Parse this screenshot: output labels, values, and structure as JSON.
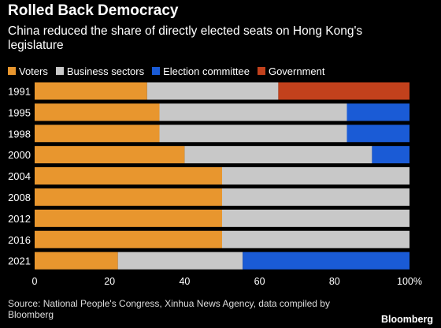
{
  "title": "Rolled Back Democracy",
  "subtitle": "China reduced the share of directly elected seats on Hong Kong's legislature",
  "source": "Source: National People's Congress, Xinhua News Agency, data compiled by Bloomberg",
  "brand": "Bloomberg",
  "chart_data": {
    "type": "bar",
    "orientation": "horizontal",
    "stacked": true,
    "categories": [
      "1991",
      "1995",
      "1998",
      "2000",
      "2004",
      "2008",
      "2012",
      "2016",
      "2021"
    ],
    "series": [
      {
        "name": "Voters",
        "color": "#e8962e",
        "values": [
          30,
          33.3,
          33.3,
          40,
          50,
          50,
          50,
          50,
          22.2
        ]
      },
      {
        "name": "Business sectors",
        "color": "#c8c8c8",
        "values": [
          35,
          50,
          50,
          50,
          50,
          50,
          50,
          50,
          33.3
        ]
      },
      {
        "name": "Election committee",
        "color": "#1a5bd6",
        "values": [
          0,
          16.7,
          16.7,
          10,
          0,
          0,
          0,
          0,
          44.5
        ]
      },
      {
        "name": "Government",
        "color": "#c2411c",
        "values": [
          35,
          0,
          0,
          0,
          0,
          0,
          0,
          0,
          0
        ]
      }
    ],
    "xlim": [
      0,
      100
    ],
    "xticks": [
      "0",
      "20",
      "40",
      "60",
      "80",
      "100%"
    ],
    "xtick_values": [
      0,
      20,
      40,
      60,
      80,
      100
    ],
    "legend_position": "top",
    "grid": false
  }
}
